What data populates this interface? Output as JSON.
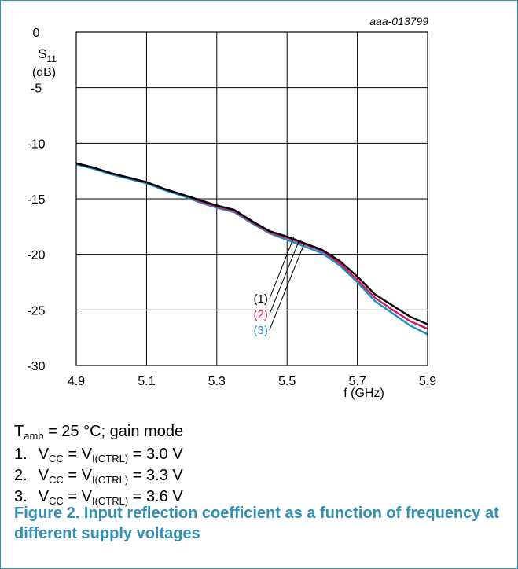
{
  "figure_id": "aaa-013799",
  "chart_data": {
    "type": "line",
    "ylabel_main": "S",
    "ylabel_sub": "11",
    "ylabel_unit": "(dB)",
    "xlabel": "f (GHz)",
    "xlim": [
      4.9,
      5.9
    ],
    "ylim": [
      -30,
      0
    ],
    "xticks": [
      4.9,
      5.1,
      5.3,
      5.5,
      5.7,
      5.9
    ],
    "xtick_labels": [
      "4.9",
      "5.1",
      "5.3",
      "5.5",
      "5.7",
      "5.9"
    ],
    "yticks": [
      0,
      -5,
      -10,
      -15,
      -20,
      -25,
      -30
    ],
    "ytick_labels": [
      "0",
      "-5",
      "-10",
      "-15",
      "-20",
      "-25",
      "-30"
    ],
    "grid": true,
    "series": [
      {
        "name": "(1)",
        "color": "#000000",
        "x": [
          4.9,
          4.95,
          5.0,
          5.05,
          5.1,
          5.15,
          5.2,
          5.25,
          5.3,
          5.35,
          5.4,
          5.45,
          5.5,
          5.55,
          5.6,
          5.65,
          5.7,
          5.75,
          5.8,
          5.85,
          5.9
        ],
        "y": [
          -11.8,
          -12.2,
          -12.7,
          -13.1,
          -13.5,
          -14.1,
          -14.6,
          -15.1,
          -15.6,
          -16.0,
          -17.0,
          -17.9,
          -18.4,
          -19.0,
          -19.6,
          -20.6,
          -22.0,
          -23.6,
          -24.6,
          -25.6,
          -26.3
        ]
      },
      {
        "name": "(2)",
        "color": "#d81b60",
        "x": [
          4.9,
          4.95,
          5.0,
          5.05,
          5.1,
          5.15,
          5.2,
          5.25,
          5.3,
          5.35,
          5.4,
          5.45,
          5.5,
          5.55,
          5.6,
          5.65,
          5.7,
          5.75,
          5.8,
          5.85,
          5.9
        ],
        "y": [
          -11.8,
          -12.2,
          -12.7,
          -13.1,
          -13.5,
          -14.1,
          -14.6,
          -15.2,
          -15.7,
          -16.1,
          -17.1,
          -18.0,
          -18.5,
          -19.1,
          -19.7,
          -20.8,
          -22.3,
          -23.9,
          -25.0,
          -26.0,
          -26.7
        ]
      },
      {
        "name": "(3)",
        "color": "#1a8fc7",
        "x": [
          4.9,
          4.95,
          5.0,
          5.05,
          5.1,
          5.15,
          5.2,
          5.25,
          5.3,
          5.35,
          5.4,
          5.45,
          5.5,
          5.55,
          5.6,
          5.65,
          5.7,
          5.75,
          5.8,
          5.85,
          5.9
        ],
        "y": [
          -11.9,
          -12.3,
          -12.8,
          -13.2,
          -13.6,
          -14.2,
          -14.7,
          -15.3,
          -15.8,
          -16.2,
          -17.2,
          -18.1,
          -18.7,
          -19.3,
          -19.9,
          -21.0,
          -22.5,
          -24.2,
          -25.3,
          -26.4,
          -27.2
        ]
      }
    ]
  },
  "conditions": {
    "t_main": "T",
    "t_sub": "amb",
    "t_rest": " = 25 °C; gain mode",
    "items": [
      {
        "num": "1.",
        "v": "V",
        "v_sub": "CC",
        "eq": " = V",
        "eq_sub": "I(CTRL)",
        "val": " = 3.0 V"
      },
      {
        "num": "2.",
        "v": "V",
        "v_sub": "CC",
        "eq": " = V",
        "eq_sub": "I(CTRL)",
        "val": " = 3.3 V"
      },
      {
        "num": "3.",
        "v": "V",
        "v_sub": "CC",
        "eq": " = V",
        "eq_sub": "I(CTRL)",
        "val": " = 3.6 V"
      }
    ]
  },
  "caption": "Figure 2.  Input reflection coefficient as a function of frequency at different supply voltages",
  "colors": {
    "accent": "#2f8fb8",
    "series1": "#000000",
    "series2": "#d81b60",
    "series3": "#1a8fc7"
  }
}
